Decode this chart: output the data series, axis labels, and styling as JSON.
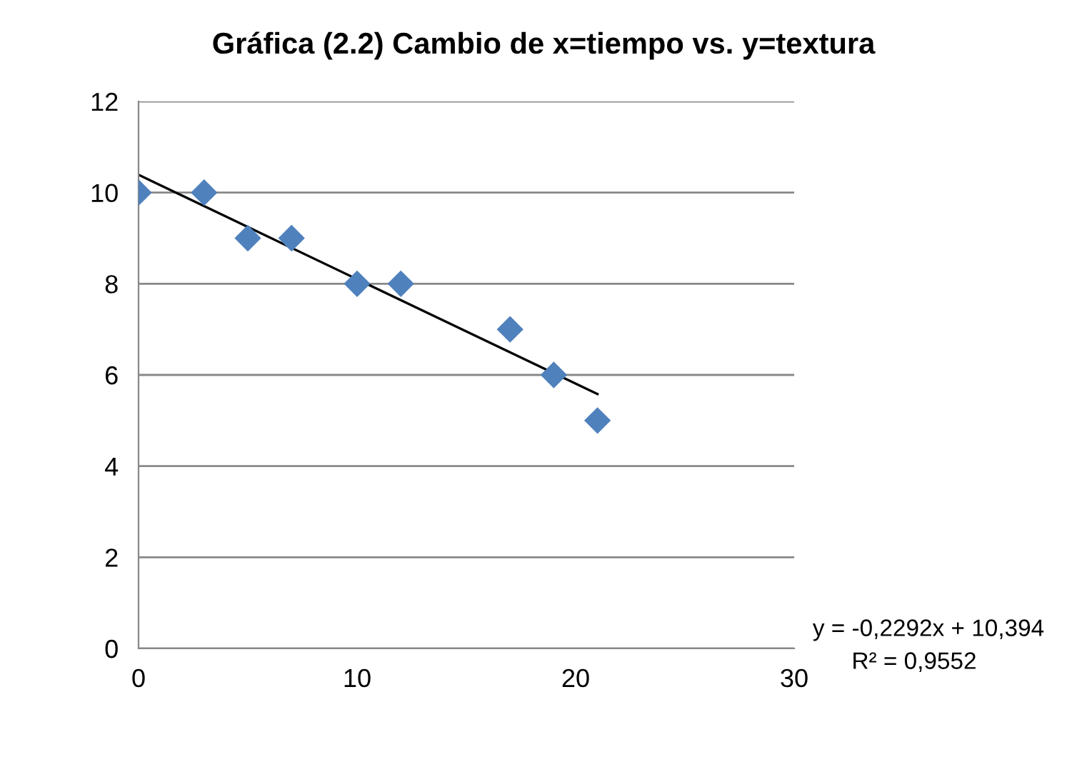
{
  "chart_data": {
    "type": "scatter",
    "title": "Gráfica (2.2) Cambio de x=tiempo vs. y=textura",
    "series": [
      {
        "marker": "diamond",
        "color": "#4f81bd",
        "x": [
          0,
          3,
          5,
          7,
          10,
          12,
          17,
          19,
          21
        ],
        "values": [
          10,
          10,
          9,
          9,
          8,
          8,
          7,
          6,
          5
        ]
      },
      {
        "type": "line",
        "marker": "none",
        "color": "#000000",
        "x": [
          0,
          21
        ],
        "values": [
          10.39,
          5.58
        ]
      }
    ],
    "xlim": [
      0,
      30
    ],
    "xticks": [
      0,
      10,
      20,
      30
    ],
    "ylim": [
      0,
      12
    ],
    "yticks": [
      0,
      2,
      4,
      6,
      8,
      10,
      12
    ],
    "grid": "y",
    "legend": false,
    "annotations": [
      "y = -0,2292x + 10,394",
      "R² = 0,9552"
    ]
  }
}
